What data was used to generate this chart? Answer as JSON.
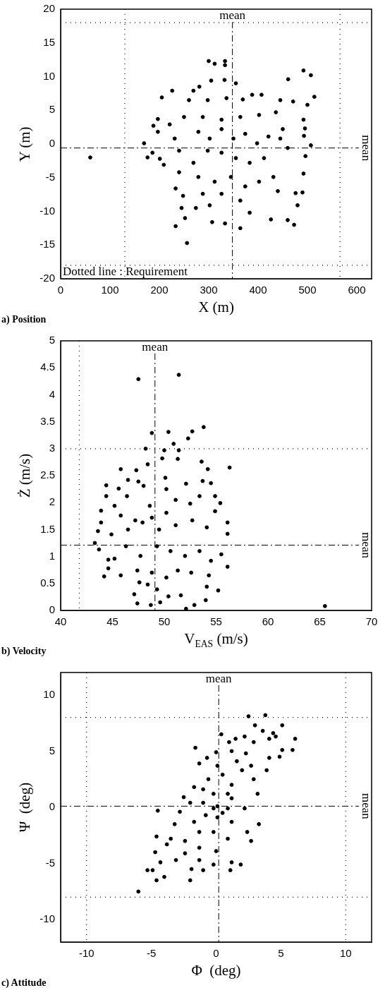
{
  "chart_data": [
    {
      "type": "scatter",
      "title": "a) Position",
      "xlabel": "X (m)",
      "ylabel": "Y (m)",
      "color": "#000000",
      "marker": "circle",
      "xlim": [
        0,
        630
      ],
      "ylim": [
        -20,
        20
      ],
      "xticks": [
        0,
        100,
        200,
        300,
        400,
        500,
        600
      ],
      "yticks": [
        -20,
        -15,
        -10,
        -5,
        0,
        5,
        10,
        15,
        20
      ],
      "ref_lines": [
        {
          "axis": "x",
          "value": 348,
          "label": "mean",
          "line_style": "dashed",
          "color": "#000000"
        },
        {
          "axis": "y",
          "value": -0.6,
          "label": "mean",
          "line_style": "dashed",
          "color": "#000000"
        },
        {
          "axis": "x",
          "value": 130,
          "line_style": "dotted",
          "color": "#000000"
        },
        {
          "axis": "x",
          "value": 566,
          "line_style": "dotted",
          "color": "#000000"
        },
        {
          "axis": "y",
          "value": 18,
          "line_style": "dotted",
          "color": "#000000"
        },
        {
          "axis": "y",
          "value": -18,
          "line_style": "dotted",
          "color": "#000000"
        }
      ],
      "annotations": [
        "Dotted line : Requirement"
      ],
      "x": [
        300,
        312,
        333,
        333,
        492,
        507,
        461,
        305,
        332,
        355,
        226,
        205,
        281,
        514,
        197,
        188,
        197,
        169,
        60,
        176,
        186,
        201,
        209,
        233,
        248,
        245,
        252,
        233,
        256,
        307,
        333,
        364,
        426,
        460,
        473,
        480,
        490,
        476,
        492,
        496,
        507,
        493,
        495,
        492,
        500,
        445,
        471,
        407,
        388,
        369,
        279,
        302,
        326,
        350,
        374,
        398,
        421,
        445,
        460,
        412,
        383,
        355,
        326,
        298,
        269,
        240,
        231,
        221,
        250,
        288,
        326,
        364,
        402,
        436,
        450,
        240,
        279,
        312,
        345,
        374,
        402,
        431,
        440,
        288,
        326,
        364,
        274,
        383,
        302,
        260,
        298,
        336,
        269
      ],
      "values": [
        12.3,
        11.9,
        12.3,
        11.7,
        10.9,
        10.2,
        9.6,
        9.4,
        9.5,
        9.0,
        7.9,
        6.9,
        8.5,
        7.0,
        3.7,
        2.7,
        1.8,
        0.1,
        -2.0,
        -2.0,
        -1.3,
        -2.2,
        -3.1,
        -6.6,
        -7.7,
        -9.5,
        -11.0,
        -12.2,
        -14.7,
        -11.6,
        -11.8,
        -12.5,
        -11.2,
        -11.3,
        -12.0,
        -9.1,
        -7.2,
        -7.3,
        -4.4,
        -1.8,
        -0.2,
        1.2,
        2.3,
        3.6,
        5.8,
        6.5,
        6.3,
        7.3,
        7.3,
        6.6,
        1.8,
        0.8,
        2.2,
        0.8,
        1.5,
        0.1,
        1.1,
        0.8,
        -0.6,
        -2.1,
        -2.8,
        -2.1,
        -1.3,
        -1.0,
        -2.8,
        -1.0,
        0.8,
        2.9,
        4.0,
        4.0,
        3.6,
        4.0,
        4.3,
        4.7,
        2.2,
        -4.2,
        -4.9,
        -5.6,
        -4.9,
        -6.3,
        -5.6,
        -4.9,
        -7.0,
        -7.4,
        -7.4,
        -8.4,
        -9.5,
        -10.2,
        -9.1,
        6.5,
        6.5,
        6.8,
        7.9
      ]
    },
    {
      "type": "scatter",
      "title": "b) Velocity",
      "xlabel": "V$_{EAS}$ (m/s)",
      "ylabel": "Ż (m/s)",
      "color": "#000000",
      "marker": "circle",
      "xlim": [
        40,
        70
      ],
      "ylim": [
        0,
        5
      ],
      "xticks": [
        40,
        45,
        50,
        55,
        60,
        65,
        70
      ],
      "yticks": [
        0,
        0.5,
        1,
        1.5,
        2,
        2.5,
        3,
        3.5,
        4,
        4.5,
        5
      ],
      "ref_lines": [
        {
          "axis": "x",
          "value": 49.1,
          "label": "mean",
          "line_style": "dashed",
          "color": "#000000"
        },
        {
          "axis": "y",
          "value": 1.21,
          "label": "mean",
          "line_style": "dashed",
          "color": "#000000"
        },
        {
          "axis": "x",
          "value": 41.8,
          "line_style": "dotted",
          "color": "#000000"
        },
        {
          "axis": "y",
          "value": 3,
          "line_style": "dotted",
          "color": "#000000"
        }
      ],
      "x": [
        47.5,
        51.4,
        48.8,
        50.4,
        52.7,
        53.8,
        52.3,
        50.9,
        48.2,
        50.0,
        51.4,
        49.8,
        51.3,
        53.6,
        56.3,
        54.2,
        48.4,
        47.3,
        45.8,
        46.5,
        44.4,
        45.6,
        47.5,
        50.1,
        52.1,
        53.7,
        54.5,
        44.4,
        46.4,
        48.0,
        50.2,
        53.4,
        55.4,
        54.9,
        45.2,
        48.6,
        51.1,
        52.5,
        43.9,
        54.9,
        56.1,
        43.9,
        43.6,
        43.3,
        43.7,
        44.6,
        44.6,
        44.2,
        56.1,
        55.5,
        56.1,
        55.2,
        65.5,
        47.4,
        48.7,
        49.6,
        52.1,
        52.9,
        54.0,
        47.1,
        50.4,
        51.6,
        54.1,
        45.8,
        47.4,
        48.8,
        50.2,
        51.3,
        52.6,
        54.3,
        45.2,
        46.3,
        47.7,
        49.3,
        50.6,
        52.0,
        53.4,
        54.5,
        44.9,
        46.5,
        47.9,
        49.5,
        51.1,
        52.7,
        54.1,
        45.8,
        47.2,
        48.8,
        50.2,
        48.4,
        49.3,
        47.6
      ],
      "values": [
        4.29,
        4.37,
        3.29,
        3.31,
        3.32,
        3.4,
        3.19,
        3.09,
        3.0,
        2.97,
        2.97,
        2.82,
        2.81,
        2.76,
        2.65,
        2.62,
        2.71,
        2.6,
        2.62,
        2.42,
        2.32,
        2.26,
        2.39,
        2.46,
        2.35,
        2.4,
        2.36,
        2.12,
        2.12,
        2.31,
        2.25,
        2.12,
        1.99,
        2.12,
        1.94,
        1.94,
        2.05,
        1.98,
        1.85,
        1.84,
        1.63,
        1.63,
        1.47,
        1.25,
        1.13,
        0.94,
        0.78,
        0.63,
        1.42,
        1.04,
        0.81,
        0.37,
        0.08,
        0.13,
        0.1,
        0.15,
        0.03,
        0.1,
        0.19,
        0.3,
        0.26,
        0.28,
        0.44,
        0.65,
        0.74,
        0.7,
        0.61,
        0.74,
        0.7,
        0.65,
        0.96,
        1.19,
        1.01,
        1.19,
        1.1,
        1.01,
        1.1,
        0.92,
        1.41,
        1.5,
        1.63,
        1.5,
        1.58,
        1.67,
        1.54,
        1.76,
        1.67,
        1.72,
        1.81,
        0.48,
        0.39,
        0.52
      ]
    },
    {
      "type": "scatter",
      "title": "c) Attitude",
      "xlabel": "Φ  (deg)",
      "ylabel": "Ψ  (deg)",
      "color": "#000000",
      "marker": "circle",
      "xlim": [
        -12,
        12
      ],
      "ylim": [
        -12,
        12
      ],
      "xticks": [
        -10,
        -5,
        0,
        5,
        10
      ],
      "yticks": [
        -10,
        -5,
        0,
        5,
        10
      ],
      "ref_lines": [
        {
          "axis": "x",
          "value": 0.2,
          "label": "mean",
          "line_style": "dashed",
          "color": "#000000"
        },
        {
          "axis": "y",
          "value": 0.1,
          "label": "mean",
          "line_style": "dashed",
          "color": "#000000"
        },
        {
          "axis": "x",
          "value": -10,
          "line_style": "dotted",
          "color": "#000000"
        },
        {
          "axis": "x",
          "value": 10,
          "line_style": "dotted",
          "color": "#000000"
        },
        {
          "axis": "y",
          "value": 8,
          "line_style": "dotted",
          "color": "#000000"
        },
        {
          "axis": "y",
          "value": -8,
          "line_style": "dotted",
          "color": "#000000"
        }
      ],
      "x": [
        3.8,
        2.5,
        5.1,
        3.0,
        3.6,
        4.4,
        6.1,
        4.6,
        4.1,
        2.2,
        1.5,
        0.4,
        -1.6,
        0.0,
        1.0,
        2.9,
        5.1,
        5.9,
        4.9,
        4.1,
        3.9,
        -0.7,
        -1.3,
        -1.7,
        -2.5,
        -4.5,
        -2.8,
        -3.2,
        -4.6,
        -3.5,
        -3.8,
        -4.7,
        -4.3,
        -5.3,
        -4.9,
        -4.6,
        -4.0,
        -6.0,
        -2.0,
        -1.9,
        -1.0,
        1.1,
        1.9,
        1.2,
        -0.2,
        2.7,
        2.4,
        3.3,
        2.2,
        3.2,
        2.9,
        2.0,
        1.2,
        0.5,
        -0.2,
        -1.0,
        0.1,
        0.9,
        1.2,
        -0.8,
        0.1,
        1.2,
        -1.7,
        -1.3,
        -0.2,
        0.9,
        -2.4,
        -1.3,
        0.0,
        -2.4,
        -3.1,
        -1.3,
        -2.0,
        -0.6,
        0.1,
        1.6,
        1.2,
        2.3,
        2.7,
        0.9,
        -1.0,
        -0.2,
        0.5
      ],
      "values": [
        8.2,
        8.1,
        7.3,
        7.3,
        6.8,
        6.6,
        6.1,
        6.3,
        6.1,
        6.3,
        6.1,
        6.5,
        5.3,
        4.9,
        5.8,
        5.8,
        5.1,
        5.1,
        4.5,
        4.4,
        3.3,
        4.4,
        3.9,
        1.8,
        0.9,
        -0.3,
        -0.4,
        -1.5,
        -2.6,
        -2.8,
        -3.3,
        -4.0,
        -4.9,
        -5.6,
        -5.6,
        -6.5,
        -6.2,
        -7.5,
        -6.5,
        -5.5,
        -5.6,
        -5.6,
        -5.1,
        -4.9,
        -5.1,
        -3.0,
        -2.2,
        -1.5,
        -0.1,
        1.2,
        2.5,
        3.3,
        2.0,
        2.9,
        1.2,
        0.4,
        0.1,
        -0.1,
        0.8,
        -0.7,
        -0.9,
        -1.3,
        -1.3,
        -2.2,
        -2.2,
        -2.8,
        -3.0,
        -3.6,
        -3.9,
        -4.1,
        -4.7,
        -4.7,
        0.4,
        2.5,
        3.7,
        4.1,
        5.0,
        4.8,
        3.7,
        1.2,
        1.6,
        -0.1,
        -0.5
      ]
    }
  ]
}
